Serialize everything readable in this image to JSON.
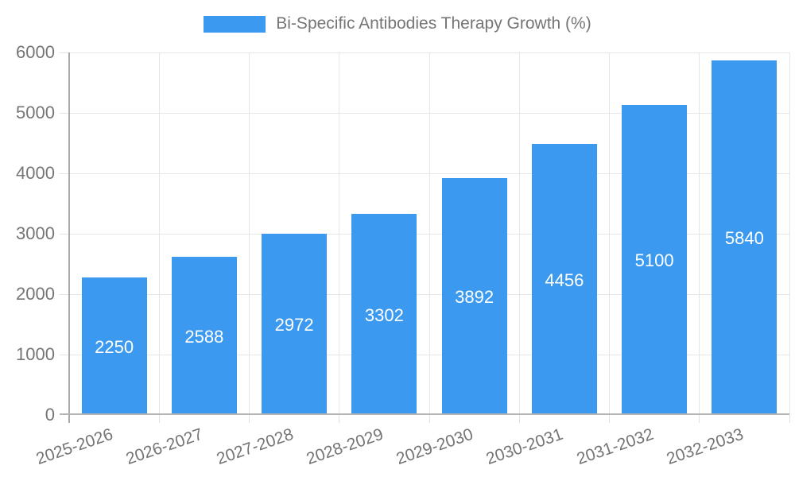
{
  "chart_data": {
    "type": "bar",
    "title": "Bi-Specific Antibodies Therapy Growth (%)",
    "legend_position": "top",
    "categories": [
      "2025-2026",
      "2026-2027",
      "2027-2028",
      "2028-2029",
      "2029-2030",
      "2030-2031",
      "2031-2032",
      "2032-2033"
    ],
    "values": [
      2250,
      2588,
      2972,
      3302,
      3892,
      4456,
      5100,
      5840
    ],
    "bar_value_labels": [
      "2250",
      "2588",
      "2972",
      "3302",
      "3892",
      "4456",
      "5100",
      "5840"
    ],
    "xlabel": "",
    "ylabel": "",
    "ylim": [
      0,
      6000
    ],
    "y_ticks": [
      0,
      1000,
      2000,
      3000,
      4000,
      5000,
      6000
    ],
    "grid": true,
    "colors": {
      "bar": "#3b9af0",
      "bar_label": "#ffffff",
      "axis_text": "#757575",
      "grid_line": "#e6e6e6",
      "axis_line": "#a9a9a9"
    }
  }
}
